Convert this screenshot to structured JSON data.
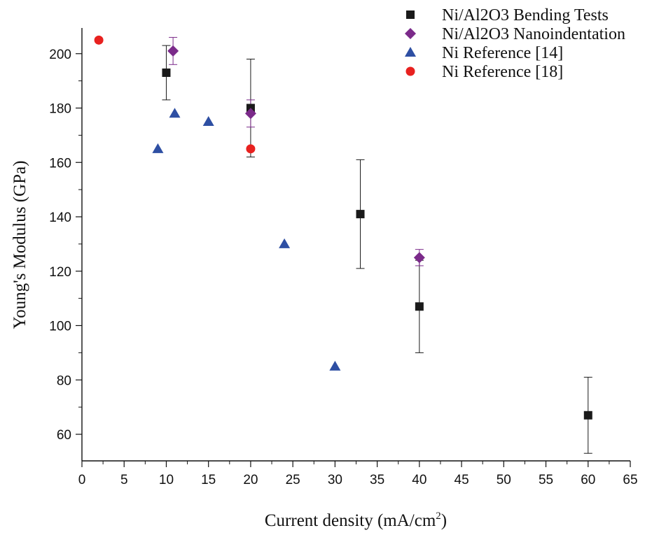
{
  "chart_data": {
    "type": "scatter",
    "xlabel": "Current density (mA/cm",
    "xlabel_superscript": "2",
    "xlabel_suffix": ")",
    "ylabel": "Young's Modulus (GPa)",
    "xlim": [
      0,
      65
    ],
    "ylim": [
      50,
      210
    ],
    "x_ticks": [
      0,
      5,
      10,
      15,
      20,
      25,
      30,
      35,
      40,
      45,
      50,
      55,
      60,
      65
    ],
    "y_ticks": [
      60,
      80,
      100,
      120,
      140,
      160,
      180,
      200
    ],
    "grid": false,
    "legend_position": "top-right",
    "series": [
      {
        "name": "Ni/Al2O3 Bending Tests",
        "marker": "square",
        "color": "#1a1a1a",
        "points": [
          {
            "x": 10,
            "y": 193,
            "err_low": 183,
            "err_high": 203
          },
          {
            "x": 20,
            "y": 180,
            "err_low": 162,
            "err_high": 198
          },
          {
            "x": 33,
            "y": 141,
            "err_low": 121,
            "err_high": 161
          },
          {
            "x": 40,
            "y": 107,
            "err_low": 90,
            "err_high": 124
          },
          {
            "x": 60,
            "y": 67,
            "err_low": 53,
            "err_high": 81
          }
        ]
      },
      {
        "name": "Ni/Al2O3 Nanoindentation",
        "marker": "diamond",
        "color": "#7b2a8a",
        "points": [
          {
            "x": 10.8,
            "y": 201,
            "err_low": 196,
            "err_high": 206
          },
          {
            "x": 20,
            "y": 178,
            "err_low": 173,
            "err_high": 183
          },
          {
            "x": 40,
            "y": 125,
            "err_low": 122,
            "err_high": 128
          }
        ]
      },
      {
        "name": "Ni Reference [14]",
        "marker": "triangle",
        "color": "#2e4fa3",
        "points": [
          {
            "x": 9,
            "y": 165
          },
          {
            "x": 11,
            "y": 178
          },
          {
            "x": 15,
            "y": 175
          },
          {
            "x": 24,
            "y": 130
          },
          {
            "x": 30,
            "y": 85
          }
        ]
      },
      {
        "name": "Ni Reference [18]",
        "marker": "circle",
        "color": "#e8211f",
        "points": [
          {
            "x": 2,
            "y": 205
          },
          {
            "x": 20,
            "y": 165
          }
        ]
      }
    ]
  }
}
